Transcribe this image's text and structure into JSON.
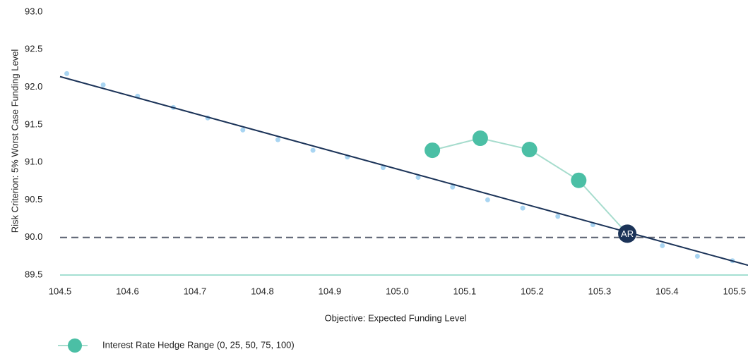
{
  "chart_data": {
    "type": "scatter",
    "x_label": "Objective: Expected Funding Level",
    "y_label": "Risk Criterion: 5% Worst Case Funding Level",
    "xlim": [
      104.5,
      105.52
    ],
    "ylim": [
      89.5,
      93
    ],
    "xticks": [
      {
        "value": 104.5,
        "label": "104.5"
      },
      {
        "value": 104.6,
        "label": "104.6"
      },
      {
        "value": 104.7,
        "label": "104.7"
      },
      {
        "value": 104.8,
        "label": "104.8"
      },
      {
        "value": 104.9,
        "label": "104.9"
      },
      {
        "value": 105,
        "label": "105.0"
      },
      {
        "value": 105.1,
        "label": "105.1"
      },
      {
        "value": 105.2,
        "label": "105.2"
      },
      {
        "value": 105.3,
        "label": "105.3"
      },
      {
        "value": 105.4,
        "label": "105.4"
      },
      {
        "value": 105.5,
        "label": "105.5"
      }
    ],
    "yticks": [
      {
        "value": 89.5,
        "label": "89.5"
      },
      {
        "value": 90,
        "label": "90.0"
      },
      {
        "value": 90.5,
        "label": "90.5"
      },
      {
        "value": 91,
        "label": "91.0"
      },
      {
        "value": 91.5,
        "label": "91.5"
      },
      {
        "value": 92,
        "label": "92.0"
      },
      {
        "value": 92.5,
        "label": "92.5"
      },
      {
        "value": 93,
        "label": "93.0"
      }
    ],
    "reference_line": {
      "y": 90,
      "color": "#5a6070",
      "style": "dashed"
    },
    "series": [
      {
        "style": "dots",
        "color": "#a9d5f2",
        "x": [
          104.51,
          104.564,
          104.615,
          104.668,
          104.719,
          104.771,
          104.823,
          104.875,
          104.926,
          104.979,
          105.031,
          105.082,
          105.134,
          105.186,
          105.238,
          105.29,
          105.342,
          105.393,
          105.445,
          105.497
        ],
        "values": [
          92.18,
          92.03,
          91.88,
          91.73,
          91.59,
          91.43,
          91.3,
          91.16,
          91.07,
          90.93,
          90.8,
          90.67,
          90.5,
          90.39,
          90.28,
          90.17,
          90.05,
          89.89,
          89.75,
          89.69
        ]
      },
      {
        "style": "line",
        "color": "#1b3358",
        "x": [
          104.5,
          105.52
        ],
        "values": [
          92.14,
          89.63
        ]
      },
      {
        "style": "markers+line",
        "name": "Interest Rate Hedge Range (0, 25, 50, 75, 100)",
        "color": "#4bbfa5",
        "line_color": "#a6dccd",
        "x": [
          105.052,
          105.123,
          105.196,
          105.269,
          105.341
        ],
        "values": [
          91.16,
          91.32,
          91.17,
          90.76,
          90.05
        ]
      }
    ],
    "annotation": {
      "text": "AR",
      "x": 105.341,
      "y": 90.05,
      "color": "#1b3358"
    }
  }
}
